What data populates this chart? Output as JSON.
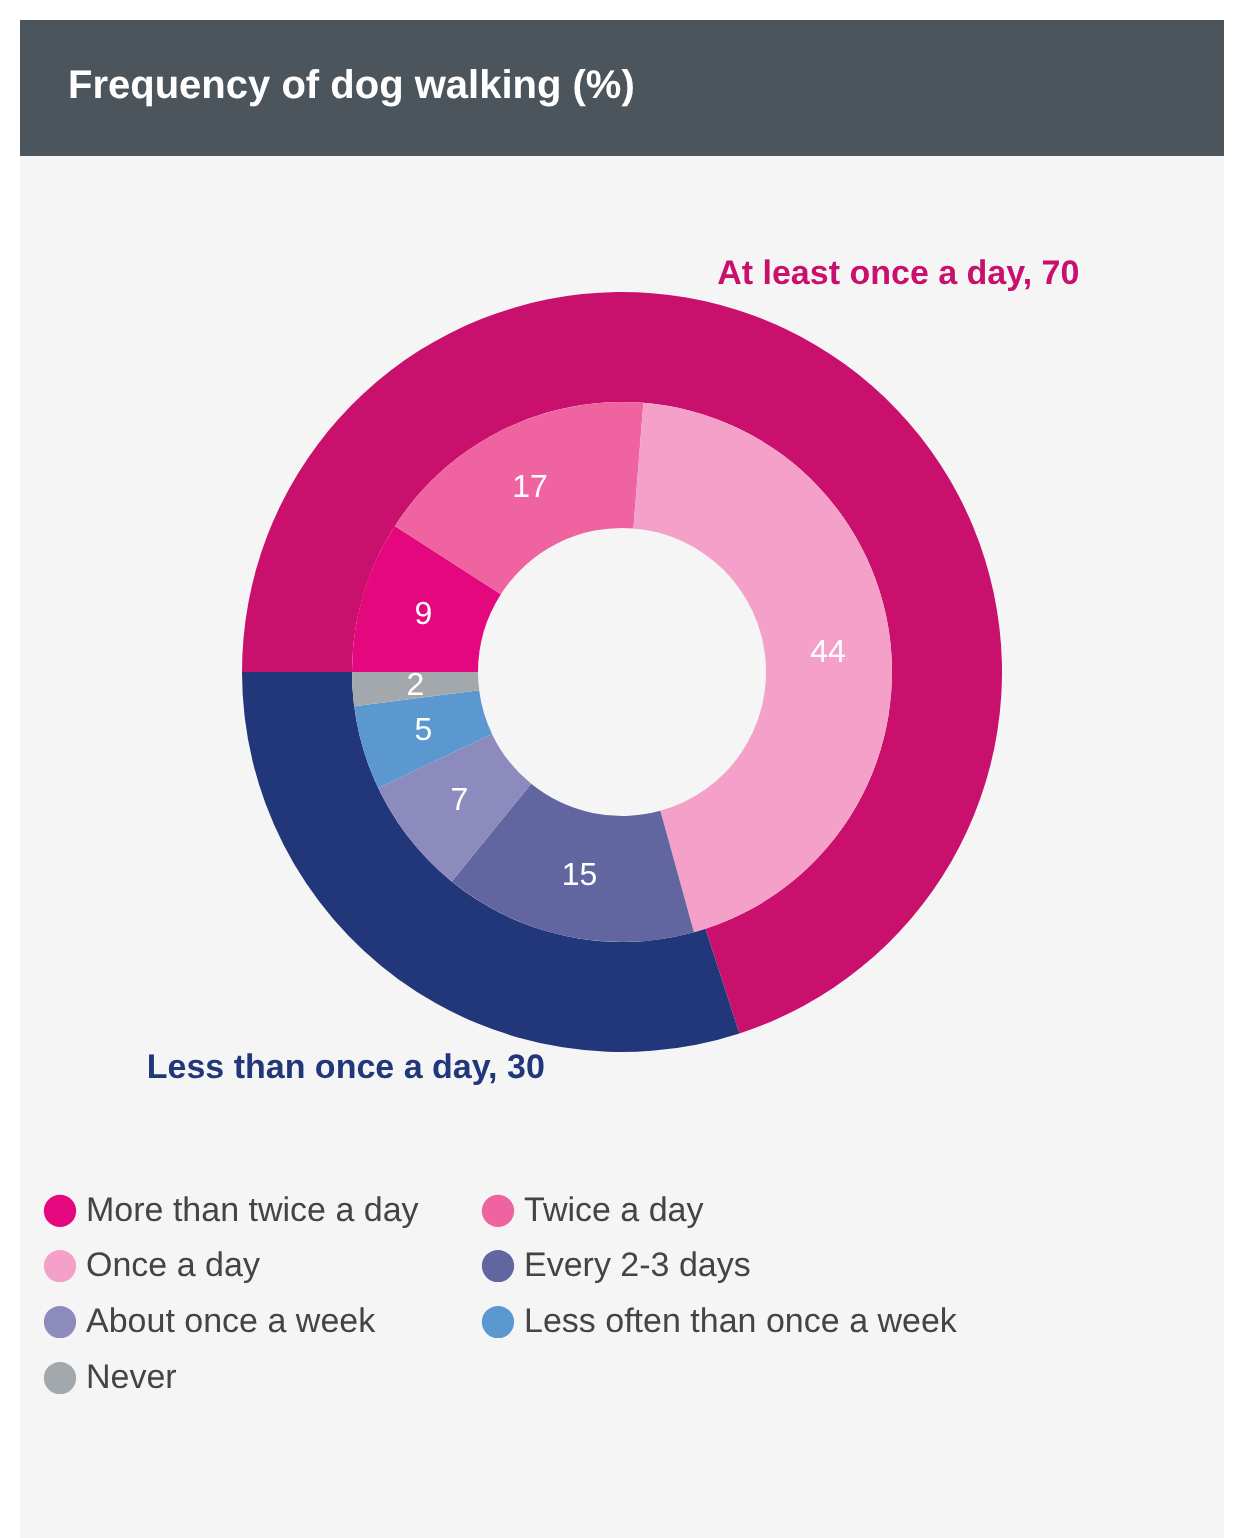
{
  "chart_data": [
    {
      "type": "donut",
      "title": "Frequency of dog walking (%)",
      "categories": [
        null,
        null
      ],
      "values": [
        70,
        30
      ],
      "colors": [
        "#c8106c",
        "#22377a"
      ],
      "value_labels": [
        "At least once a day, 70",
        "Less than once a day, 30"
      ]
    },
    {
      "type": "donut",
      "categories": [
        "More than twice a day",
        "Twice a day",
        "Once a day",
        "Every 2-3 days",
        "About once a week",
        "Less often than once a week",
        "Never"
      ],
      "values": [
        9,
        17,
        44,
        15,
        7,
        5,
        2
      ],
      "colors": [
        "#e5077e",
        "#ee63a0",
        "#f4a0c8",
        "#6266a0",
        "#8d8bbd",
        "#5b98cf",
        "#a3a8ad"
      ],
      "data_labels": true,
      "legend": "bottom"
    }
  ]
}
